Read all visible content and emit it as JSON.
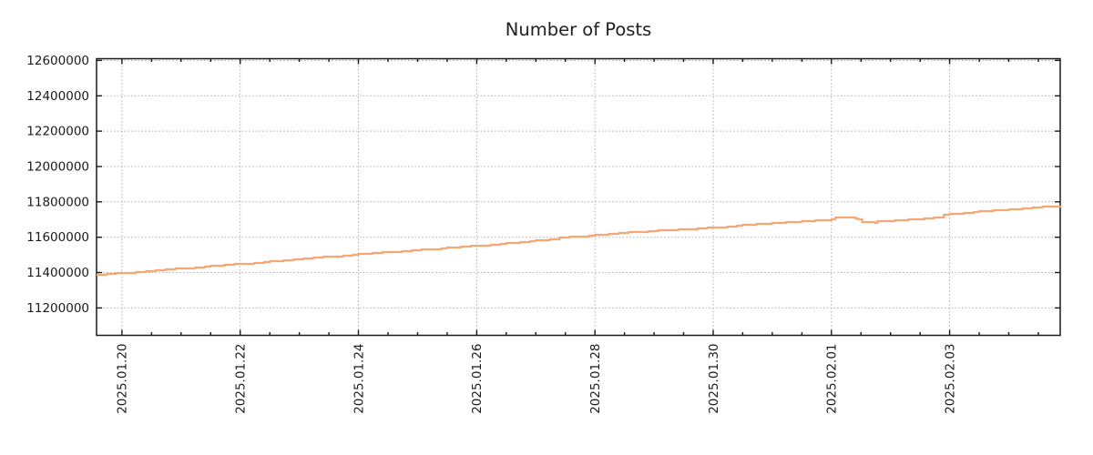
{
  "colors": {
    "background": "#ffffff",
    "frame": "#1a1a1a",
    "grid": "#adadad",
    "text": "#1a1a1a",
    "line": "#F5A873"
  },
  "chart_data": {
    "type": "line",
    "title": "Number of Posts",
    "legend": "none",
    "grid": "dotted gridlines at major ticks, both axes",
    "line_style": "stepped",
    "x_axis": {
      "unit": "date",
      "day_1_is": "2025.01.20",
      "tick_labels": [
        "2025.01.20",
        "2025.01.22",
        "2025.01.24",
        "2025.01.26",
        "2025.01.28",
        "2025.01.30",
        "2025.02.01",
        "2025.02.03"
      ],
      "major_tick_days": [
        1,
        3,
        5,
        7,
        9,
        11,
        13,
        15
      ],
      "minor_tick_step_days": 0.5,
      "minor_tick_range_days": [
        1,
        16.5
      ],
      "xlim_days": [
        0.57,
        16.87
      ],
      "label_rotation_degrees": -90
    },
    "y_axis": {
      "tick_values": [
        11200000,
        11400000,
        11600000,
        11800000,
        12000000,
        12200000,
        12400000,
        12600000
      ],
      "tick_labels": [
        "11200000",
        "11400000",
        "11600000",
        "11800000",
        "12000000",
        "12200000",
        "12400000",
        "12600000"
      ],
      "ylim": [
        11045000,
        12610000
      ]
    },
    "series": [
      {
        "name": "Number of Posts",
        "color": "#F5A873",
        "points_day_value": [
          [
            0.57,
            11388000
          ],
          [
            1,
            11398000
          ],
          [
            1.5,
            11410000
          ],
          [
            2,
            11424000
          ],
          [
            2.5,
            11437000
          ],
          [
            3,
            11449000
          ],
          [
            3.5,
            11463000
          ],
          [
            4,
            11477000
          ],
          [
            4.5,
            11491000
          ],
          [
            5,
            11504000
          ],
          [
            5.5,
            11516000
          ],
          [
            6,
            11528000
          ],
          [
            6.5,
            11540000
          ],
          [
            7,
            11552000
          ],
          [
            7.5,
            11566000
          ],
          [
            8,
            11583000
          ],
          [
            8.5,
            11599000
          ],
          [
            9,
            11614000
          ],
          [
            9.5,
            11626000
          ],
          [
            10,
            11637000
          ],
          [
            10.5,
            11646000
          ],
          [
            11,
            11655000
          ],
          [
            11.5,
            11668000
          ],
          [
            12,
            11679000
          ],
          [
            12.5,
            11689000
          ],
          [
            13,
            11700000
          ],
          [
            13.08,
            11712000
          ],
          [
            13.37,
            11714000
          ],
          [
            13.45,
            11700000
          ],
          [
            13.52,
            11685000
          ],
          [
            13.75,
            11683000
          ],
          [
            13.78,
            11691000
          ],
          [
            13.95,
            11691000
          ],
          [
            14.1,
            11696000
          ],
          [
            14.3,
            11699000
          ],
          [
            14.5,
            11702000
          ],
          [
            14.75,
            11714000
          ],
          [
            15,
            11733000
          ],
          [
            15.5,
            11746000
          ],
          [
            16,
            11757000
          ],
          [
            16.5,
            11769000
          ],
          [
            16.87,
            11779000
          ]
        ]
      }
    ]
  }
}
